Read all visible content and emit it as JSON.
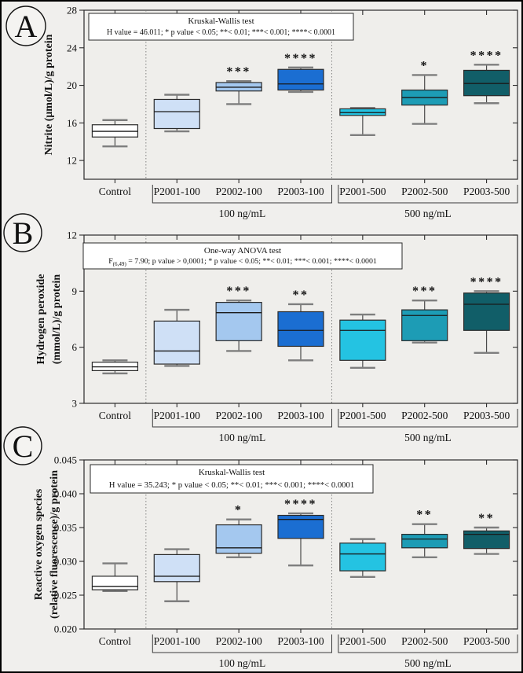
{
  "figure": {
    "background": "#f0efed",
    "plot_background": "#efeeeb",
    "frame_color": "#2b2b2b",
    "whisker_color": "#4a4a4a",
    "cap_color": "#7e7e7e",
    "separator_color": "#777777",
    "bracket_color": "#3a3a3a"
  },
  "chart_data": [
    {
      "type": "box",
      "panel_label": "A",
      "ylabel_lines": [
        "Nitrite (μmol/L)/g protein"
      ],
      "stat_box_lines": [
        "Kruskal-Wallis test",
        "H value = 46.011; * p value < 0.05; **< 0.01; ***< 0.001; ****< 0.0001"
      ],
      "ylim": [
        10,
        28
      ],
      "yticks": [
        {
          "value": 12,
          "label": "12"
        },
        {
          "value": 16,
          "label": "16"
        },
        {
          "value": 20,
          "label": "20"
        },
        {
          "value": 24,
          "label": "24"
        },
        {
          "value": 28,
          "label": "28"
        }
      ],
      "grid": false,
      "legend_position": "none",
      "categories": [
        "Control",
        "P2001-100",
        "P2002-100",
        "P2003-100",
        "P2001-500",
        "P2002-500",
        "P2003-500"
      ],
      "boxes": [
        {
          "category": "Control",
          "color": "#ffffff",
          "whisker_low": 13.5,
          "q1": 14.5,
          "median": 15.1,
          "q3": 15.8,
          "whisker_high": 16.3,
          "significance": ""
        },
        {
          "category": "P2001-100",
          "color": "#cfe0f6",
          "whisker_low": 15.1,
          "q1": 15.4,
          "median": 17.2,
          "q3": 18.5,
          "whisker_high": 19.0,
          "significance": ""
        },
        {
          "category": "P2002-100",
          "color": "#a4c8ef",
          "whisker_low": 18.0,
          "q1": 19.4,
          "median": 19.8,
          "q3": 20.3,
          "whisker_high": 20.45,
          "significance": "***"
        },
        {
          "category": "P2003-100",
          "color": "#1b6ed2",
          "whisker_low": 19.3,
          "q1": 19.5,
          "median": 20.15,
          "q3": 21.7,
          "whisker_high": 21.9,
          "significance": "****"
        },
        {
          "category": "P2001-500",
          "color": "#24c3e2",
          "whisker_low": 14.7,
          "q1": 16.8,
          "median": 17.1,
          "q3": 17.5,
          "whisker_high": 17.6,
          "significance": ""
        },
        {
          "category": "P2002-500",
          "color": "#1d9cb5",
          "whisker_low": 15.9,
          "q1": 17.9,
          "median": 18.7,
          "q3": 19.5,
          "whisker_high": 21.1,
          "significance": "*"
        },
        {
          "category": "P2003-500",
          "color": "#115e68",
          "whisker_low": 18.1,
          "q1": 18.9,
          "median": 20.2,
          "q3": 21.6,
          "whisker_high": 22.2,
          "significance": "****"
        }
      ],
      "groups": [
        {
          "label": "100 ng/mL",
          "start": 1,
          "end": 3
        },
        {
          "label": "500 ng/mL",
          "start": 4,
          "end": 6
        }
      ],
      "separators_after_index": [
        0,
        3
      ]
    },
    {
      "type": "box",
      "panel_label": "B",
      "ylabel_lines": [
        "Hydrogen peroxide",
        "(mmol/L)/g protein"
      ],
      "stat_box_lines": [
        "One-way ANOVA test",
        "F_{(6,49)} = 7.90; p value > 0,0001; * p value < 0.05; **< 0.01; ***< 0.001; ****< 0.0001"
      ],
      "ylim": [
        3,
        12
      ],
      "yticks": [
        {
          "value": 3,
          "label": "3"
        },
        {
          "value": 6,
          "label": "6"
        },
        {
          "value": 9,
          "label": "9"
        },
        {
          "value": 12,
          "label": "12"
        }
      ],
      "grid": false,
      "legend_position": "none",
      "categories": [
        "Control",
        "P2001-100",
        "P2002-100",
        "P2003-100",
        "P2001-500",
        "P2002-500",
        "P2003-500"
      ],
      "boxes": [
        {
          "category": "Control",
          "color": "#ffffff",
          "whisker_low": 4.6,
          "q1": 4.75,
          "median": 4.95,
          "q3": 5.2,
          "whisker_high": 5.3,
          "significance": ""
        },
        {
          "category": "P2001-100",
          "color": "#cfe0f6",
          "whisker_low": 5.0,
          "q1": 5.1,
          "median": 5.8,
          "q3": 7.4,
          "whisker_high": 8.0,
          "significance": ""
        },
        {
          "category": "P2002-100",
          "color": "#a4c8ef",
          "whisker_low": 5.8,
          "q1": 6.35,
          "median": 7.85,
          "q3": 8.4,
          "whisker_high": 8.5,
          "significance": "***"
        },
        {
          "category": "P2003-100",
          "color": "#1b6ed2",
          "whisker_low": 5.3,
          "q1": 6.05,
          "median": 6.9,
          "q3": 7.9,
          "whisker_high": 8.3,
          "significance": "**"
        },
        {
          "category": "P2001-500",
          "color": "#24c3e2",
          "whisker_low": 4.9,
          "q1": 5.3,
          "median": 6.9,
          "q3": 7.45,
          "whisker_high": 7.75,
          "significance": ""
        },
        {
          "category": "P2002-500",
          "color": "#1d9cb5",
          "whisker_low": 6.25,
          "q1": 6.35,
          "median": 7.7,
          "q3": 8.0,
          "whisker_high": 8.5,
          "significance": "***"
        },
        {
          "category": "P2003-500",
          "color": "#115e68",
          "whisker_low": 5.7,
          "q1": 6.9,
          "median": 8.3,
          "q3": 8.9,
          "whisker_high": 9.0,
          "significance": "****"
        }
      ],
      "groups": [
        {
          "label": "100 ng/mL",
          "start": 1,
          "end": 3
        },
        {
          "label": "500 ng/mL",
          "start": 4,
          "end": 6
        }
      ],
      "separators_after_index": [
        0,
        3
      ]
    },
    {
      "type": "box",
      "panel_label": "C",
      "ylabel_lines": [
        "Reactive oxygen species",
        "(relative fluorescence)/g protein"
      ],
      "stat_box_lines": [
        "Kruskal-Wallis test",
        "H value = 35.243; * p value < 0.05; **< 0.01; ***< 0.001; ****< 0.0001"
      ],
      "ylim": [
        0.02,
        0.045
      ],
      "yticks": [
        {
          "value": 0.02,
          "label": "0.020"
        },
        {
          "value": 0.025,
          "label": "0.025"
        },
        {
          "value": 0.03,
          "label": "0.030"
        },
        {
          "value": 0.035,
          "label": "0.035"
        },
        {
          "value": 0.04,
          "label": "0.040"
        },
        {
          "value": 0.045,
          "label": "0.045"
        }
      ],
      "grid": false,
      "legend_position": "none",
      "categories": [
        "Control",
        "P2001-100",
        "P2002-100",
        "P2003-100",
        "P2001-500",
        "P2002-500",
        "P2003-500"
      ],
      "boxes": [
        {
          "category": "Control",
          "color": "#ffffff",
          "whisker_low": 0.0256,
          "q1": 0.0258,
          "median": 0.0263,
          "q3": 0.0278,
          "whisker_high": 0.0297,
          "significance": ""
        },
        {
          "category": "P2001-100",
          "color": "#cfe0f6",
          "whisker_low": 0.0241,
          "q1": 0.027,
          "median": 0.0278,
          "q3": 0.031,
          "whisker_high": 0.0318,
          "significance": ""
        },
        {
          "category": "P2002-100",
          "color": "#a4c8ef",
          "whisker_low": 0.0306,
          "q1": 0.0312,
          "median": 0.032,
          "q3": 0.0354,
          "whisker_high": 0.0362,
          "significance": "*"
        },
        {
          "category": "P2003-100",
          "color": "#1b6ed2",
          "whisker_low": 0.0294,
          "q1": 0.0334,
          "median": 0.0362,
          "q3": 0.0368,
          "whisker_high": 0.0371,
          "significance": "****"
        },
        {
          "category": "P2001-500",
          "color": "#24c3e2",
          "whisker_low": 0.0277,
          "q1": 0.0286,
          "median": 0.0311,
          "q3": 0.0327,
          "whisker_high": 0.0333,
          "significance": ""
        },
        {
          "category": "P2002-500",
          "color": "#1d9cb5",
          "whisker_low": 0.0306,
          "q1": 0.032,
          "median": 0.0333,
          "q3": 0.034,
          "whisker_high": 0.0355,
          "significance": "**"
        },
        {
          "category": "P2003-500",
          "color": "#115e68",
          "whisker_low": 0.0311,
          "q1": 0.0319,
          "median": 0.034,
          "q3": 0.0345,
          "whisker_high": 0.035,
          "significance": "**"
        }
      ],
      "groups": [
        {
          "label": "100 ng/mL",
          "start": 1,
          "end": 3
        },
        {
          "label": "500 ng/mL",
          "start": 4,
          "end": 6
        }
      ],
      "separators_after_index": [
        0,
        3
      ]
    }
  ]
}
